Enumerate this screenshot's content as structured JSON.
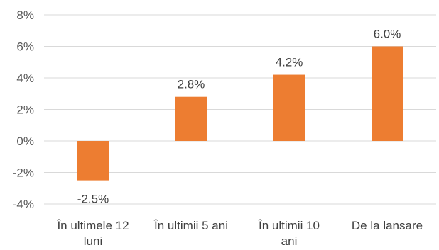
{
  "chart_data": {
    "type": "bar",
    "categories": [
      [
        "În ultimele 12",
        "luni"
      ],
      [
        "În ultimii 5 ani"
      ],
      [
        "În ultimii 10",
        "ani"
      ],
      [
        "De la lansare"
      ]
    ],
    "values": [
      -2.5,
      2.8,
      4.2,
      6.0
    ],
    "value_labels": [
      "-2.5%",
      "2.8%",
      "4.2%",
      "6.0%"
    ],
    "y_ticks": [
      8,
      6,
      4,
      2,
      0,
      -2,
      -4
    ],
    "y_tick_labels": [
      "8%",
      "6%",
      "4%",
      "2%",
      "0%",
      "-2%",
      "-4%"
    ],
    "ylim": [
      -4,
      8
    ],
    "grid": true,
    "bar_color": "#ED7D31",
    "title": "",
    "xlabel": "",
    "ylabel": ""
  }
}
